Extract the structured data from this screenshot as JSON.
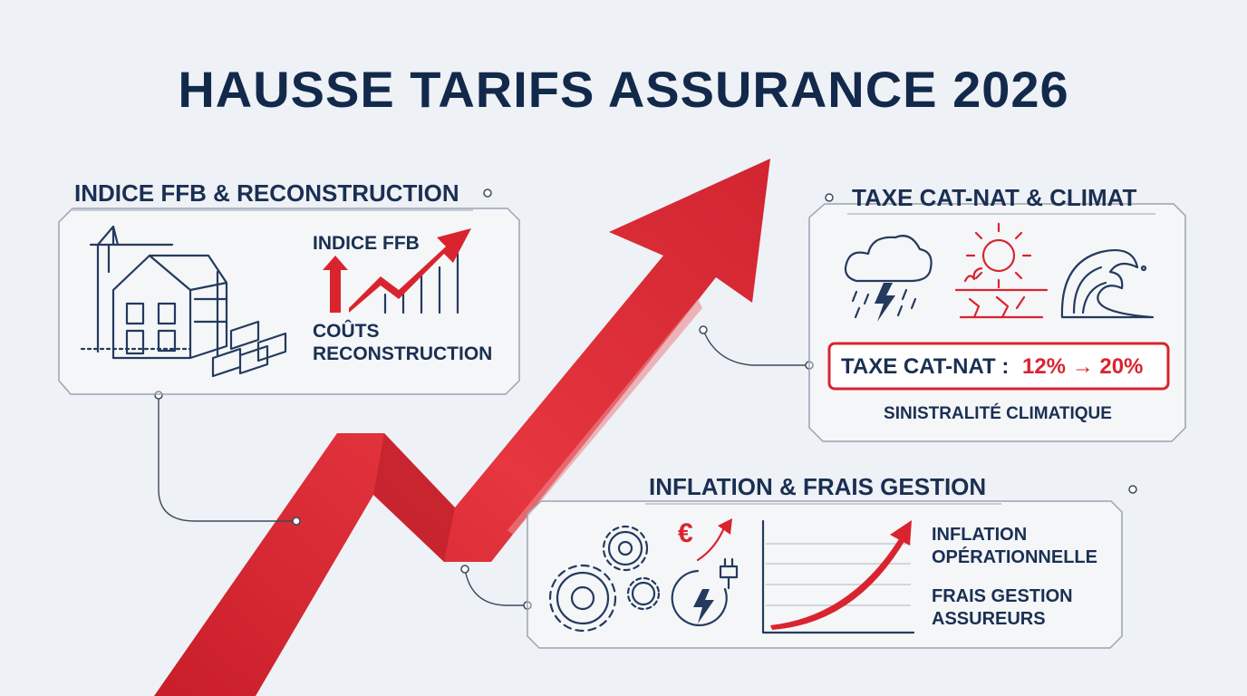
{
  "title": "HAUSSE TARIFS ASSURANCE 2026",
  "panels": [
    {
      "title": "INDICE FFB & RECONSTRUCTION",
      "index_label": "INDICE FFB",
      "cost_label": [
        "COÛTS",
        "RECONSTRUCTION"
      ]
    },
    {
      "title": "TAXE CAT-NAT & CLIMAT",
      "tax_label": "TAXE CAT-NAT :",
      "tax_change": "12% → 20%",
      "caption": "SINISTRALITÉ CLIMATIQUE"
    },
    {
      "title": "INFLATION & FRAIS GESTION",
      "currency": "€",
      "inflation_label": [
        "INFLATION",
        "OPÉRATIONNELLE"
      ],
      "fees_label": [
        "FRAIS GESTION",
        "ASSUREURS"
      ]
    }
  ]
}
